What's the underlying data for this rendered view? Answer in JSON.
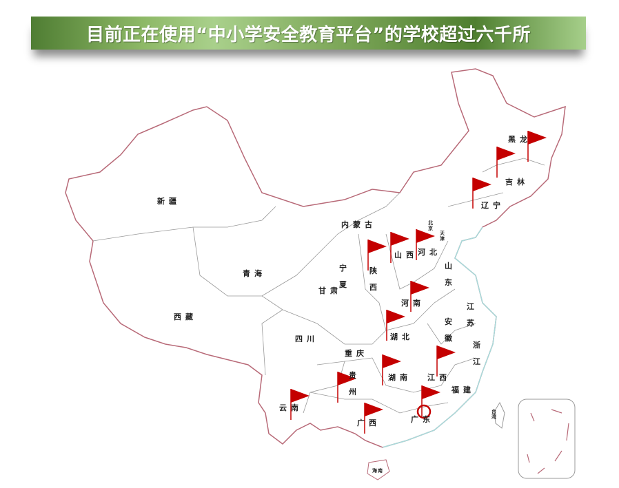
{
  "title": "目前正在使用“中小学安全教育平台”的学校超过六千所",
  "colors": {
    "flag": "#c40000",
    "border": "#b86a78",
    "coast": "#a8dcdc",
    "banner": "#6f9a4a"
  },
  "provinces": [
    {
      "name": "黑龙",
      "flag": true
    },
    {
      "name": "吉林",
      "flag": true
    },
    {
      "name": "辽宁",
      "flag": true
    },
    {
      "name": "北京",
      "flag": false
    },
    {
      "name": "天津",
      "flag": false
    },
    {
      "name": "河北",
      "flag": true
    },
    {
      "name": "山西",
      "flag": true
    },
    {
      "name": "内蒙古",
      "flag": false
    },
    {
      "name": "新疆",
      "flag": false
    },
    {
      "name": "青海",
      "flag": false
    },
    {
      "name": "西藏",
      "flag": false
    },
    {
      "name": "甘肃",
      "flag": false
    },
    {
      "name": "宁夏",
      "flag": false
    },
    {
      "name": "陕西",
      "flag": true
    },
    {
      "name": "山东",
      "flag": false
    },
    {
      "name": "河南",
      "flag": true
    },
    {
      "name": "江苏",
      "flag": false
    },
    {
      "name": "安徽",
      "flag": false
    },
    {
      "name": "湖北",
      "flag": true
    },
    {
      "name": "四川",
      "flag": false
    },
    {
      "name": "重庆",
      "flag": false
    },
    {
      "name": "浙江",
      "flag": false
    },
    {
      "name": "贵州",
      "flag": true
    },
    {
      "name": "湖南",
      "flag": true
    },
    {
      "name": "江西",
      "flag": true
    },
    {
      "name": "福建",
      "flag": false
    },
    {
      "name": "云南",
      "flag": true
    },
    {
      "name": "广西",
      "flag": true
    },
    {
      "name": "广东",
      "flag": true
    },
    {
      "name": "台湾",
      "flag": false
    },
    {
      "name": "海南",
      "flag": false
    }
  ]
}
